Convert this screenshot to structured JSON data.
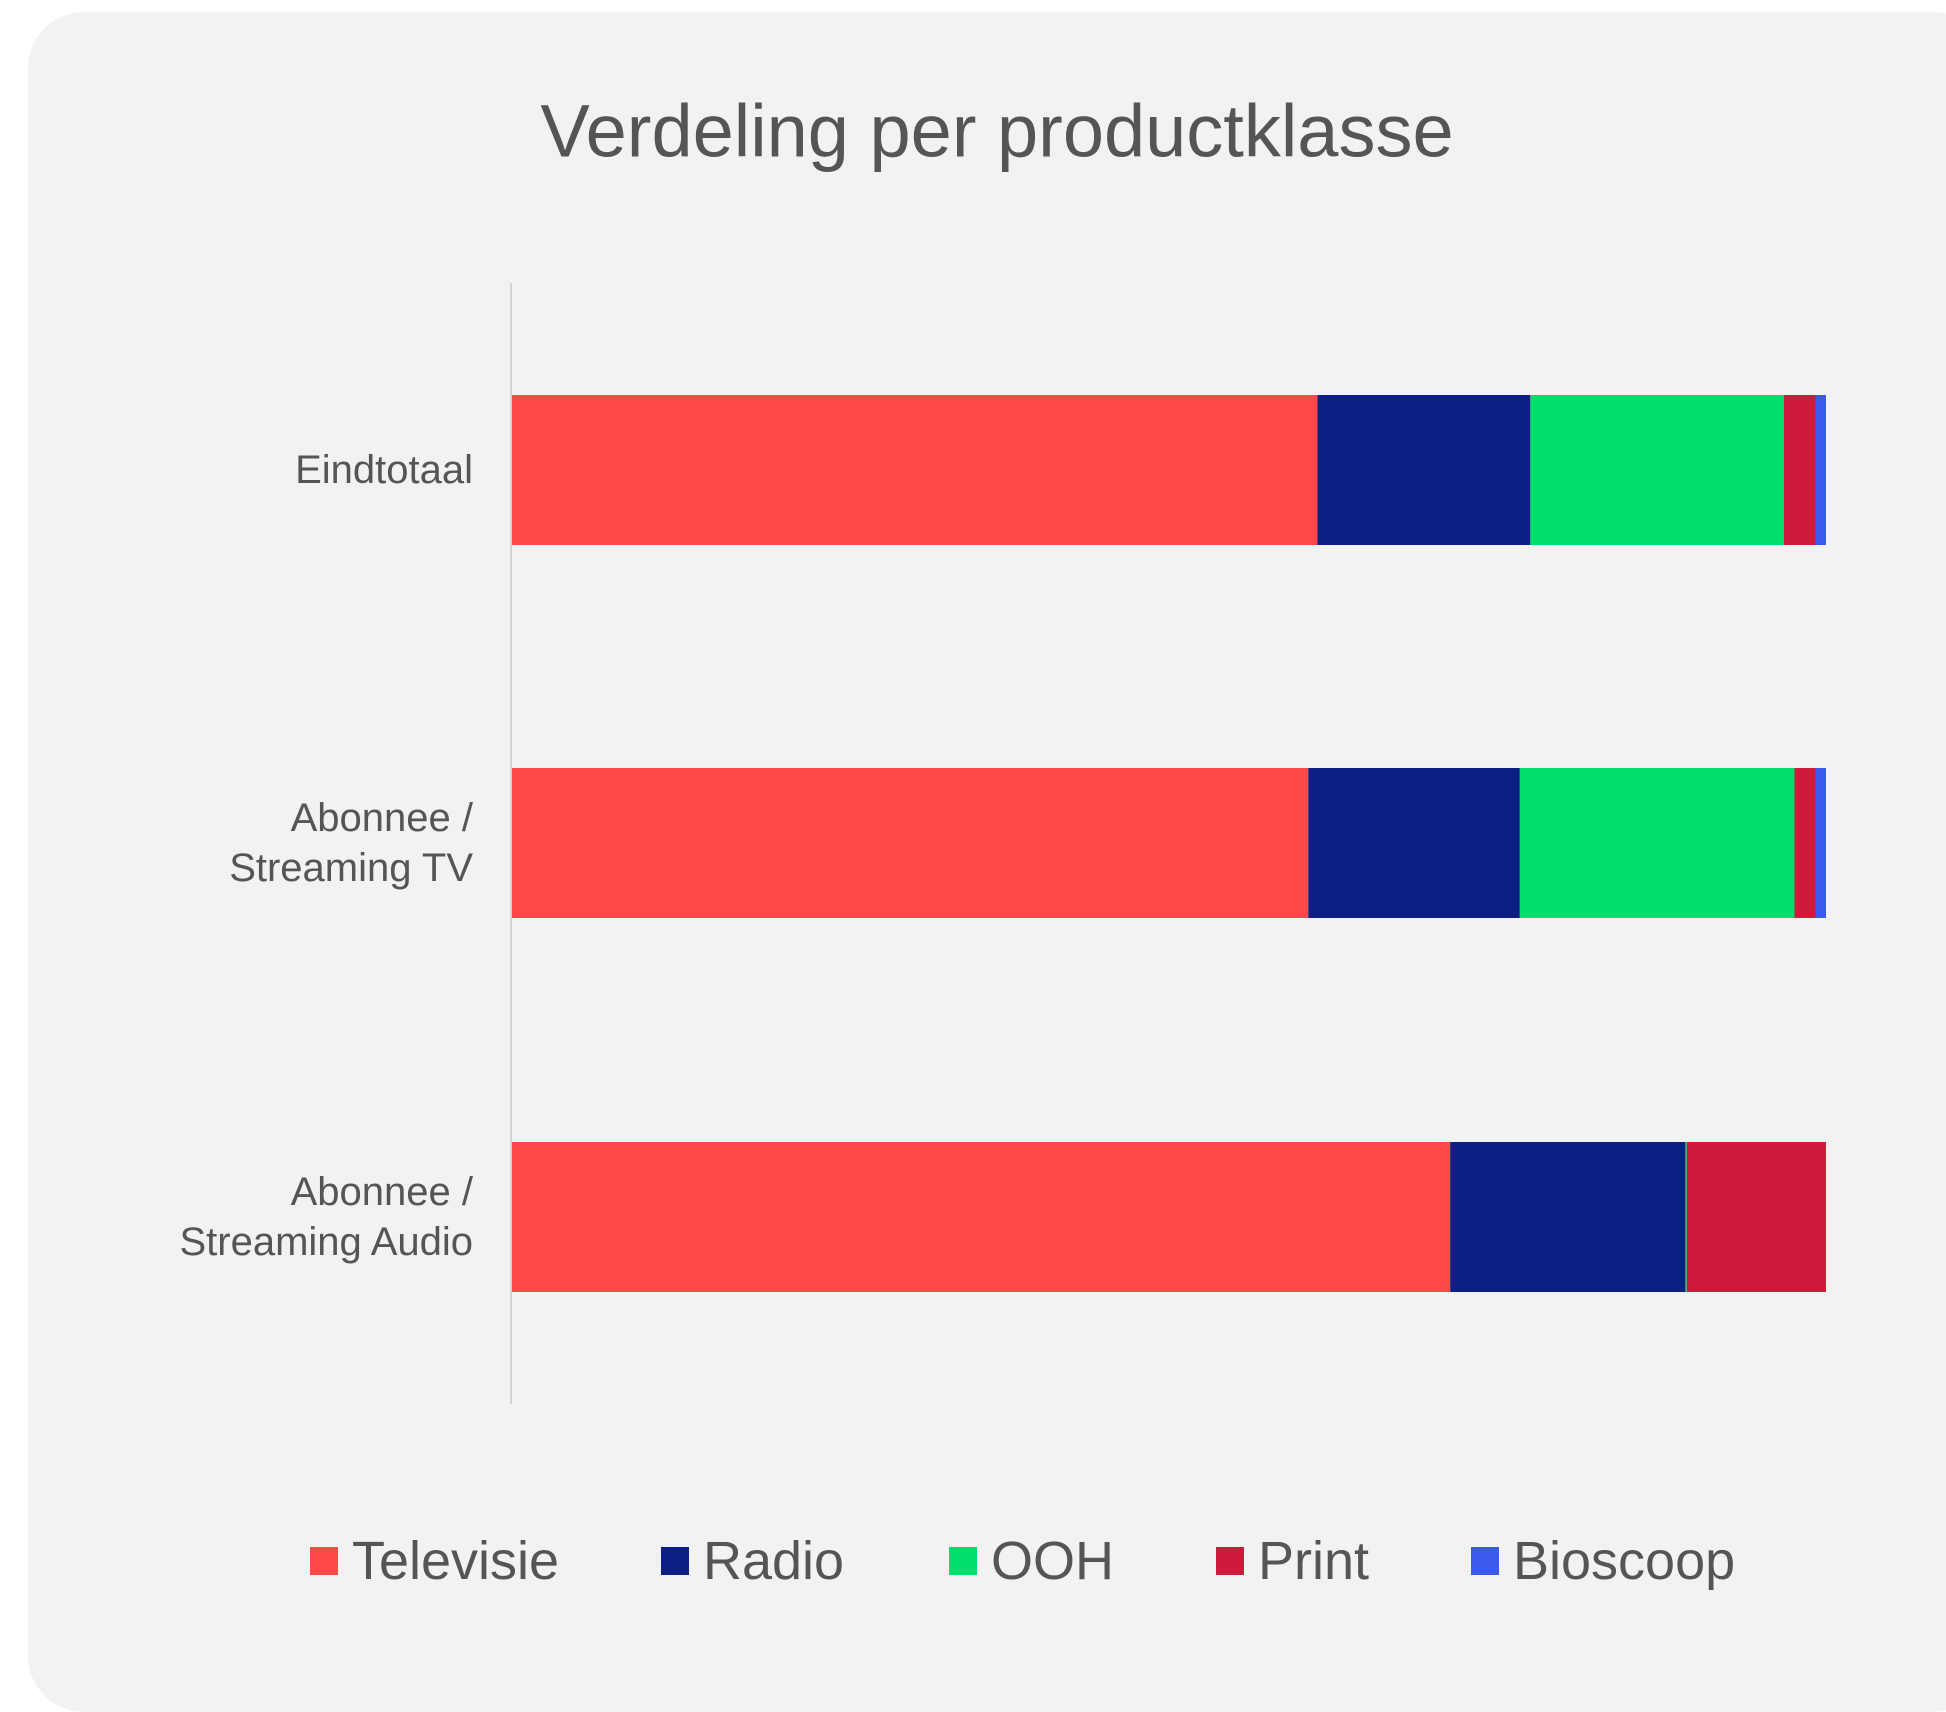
{
  "chart_data": {
    "type": "stacked_barh",
    "title": "Verdeling per productklasse",
    "categories": [
      "Eindtotaal",
      "Abonnee / Streaming TV",
      "Abonnee / Streaming Audio"
    ],
    "series": [
      {
        "name": "Televisie",
        "color": "#ff4848",
        "values": [
          61.3,
          60.6,
          71.4
        ]
      },
      {
        "name": "Radio",
        "color": "#0c1f83",
        "values": [
          16.2,
          16.1,
          17.9
        ]
      },
      {
        "name": "OOH",
        "color": "#00de6c",
        "values": [
          19.3,
          20.9,
          0.1
        ]
      },
      {
        "name": "Print",
        "color": "#cf1a3c",
        "values": [
          2.4,
          1.6,
          10.6
        ]
      },
      {
        "name": "Bioscoop",
        "color": "#3b5bef",
        "values": [
          0.8,
          0.8,
          0
        ]
      }
    ],
    "xlim": [
      0,
      100
    ],
    "legend": "bottom"
  }
}
